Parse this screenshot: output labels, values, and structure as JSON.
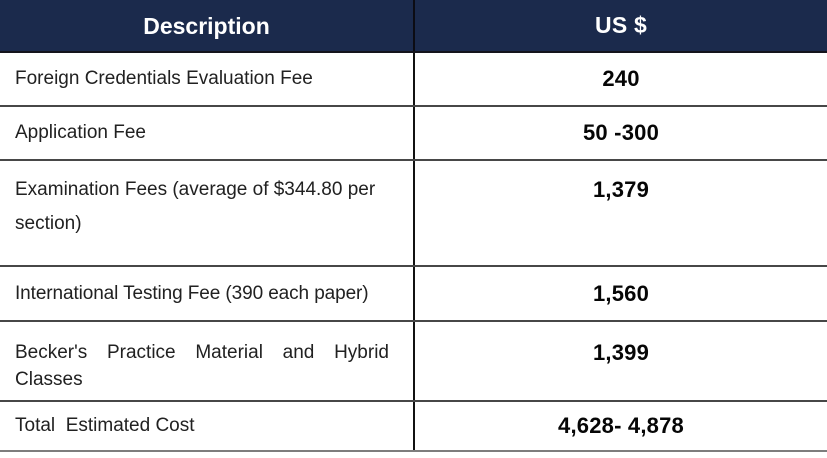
{
  "table": {
    "header": {
      "description_label": "Description",
      "amount_label": "US $"
    },
    "rows": [
      {
        "desc": "Foreign Credentials Evaluation Fee",
        "value": "240"
      },
      {
        "desc": "Application Fee",
        "value": "50 -300"
      },
      {
        "desc": "Examination Fees (average of $344.80 per section)",
        "value": "1,379"
      },
      {
        "desc": "International Testing Fee (390 each paper)",
        "value": "1,560"
      },
      {
        "desc": "Becker's Practice Material and Hybrid Classes",
        "value": "1,399"
      },
      {
        "desc": "Total  Estimated Cost",
        "value": "4,628- 4,878"
      }
    ],
    "colors": {
      "header_background": "#1b2a4c",
      "header_text": "#ffffff",
      "row_border": "#474747",
      "column_divider": "#111111",
      "body_text": "#212121",
      "amount_text": "#060606"
    }
  }
}
